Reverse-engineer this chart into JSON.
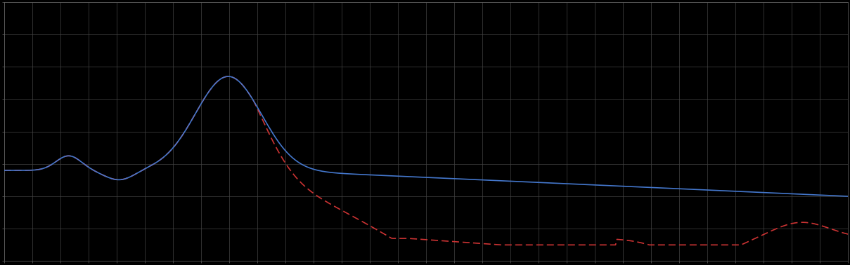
{
  "background_color": "#000000",
  "plot_bg_color": "#000000",
  "grid_color": "#444444",
  "line1_color": "#4477cc",
  "line2_color": "#cc3333",
  "line_width": 1.2,
  "xlim": [
    0,
    365
  ],
  "ylim": [
    0,
    8
  ],
  "figsize": [
    12.09,
    3.78
  ],
  "dpi": 100,
  "n_x_major": 30,
  "n_y_major": 8
}
